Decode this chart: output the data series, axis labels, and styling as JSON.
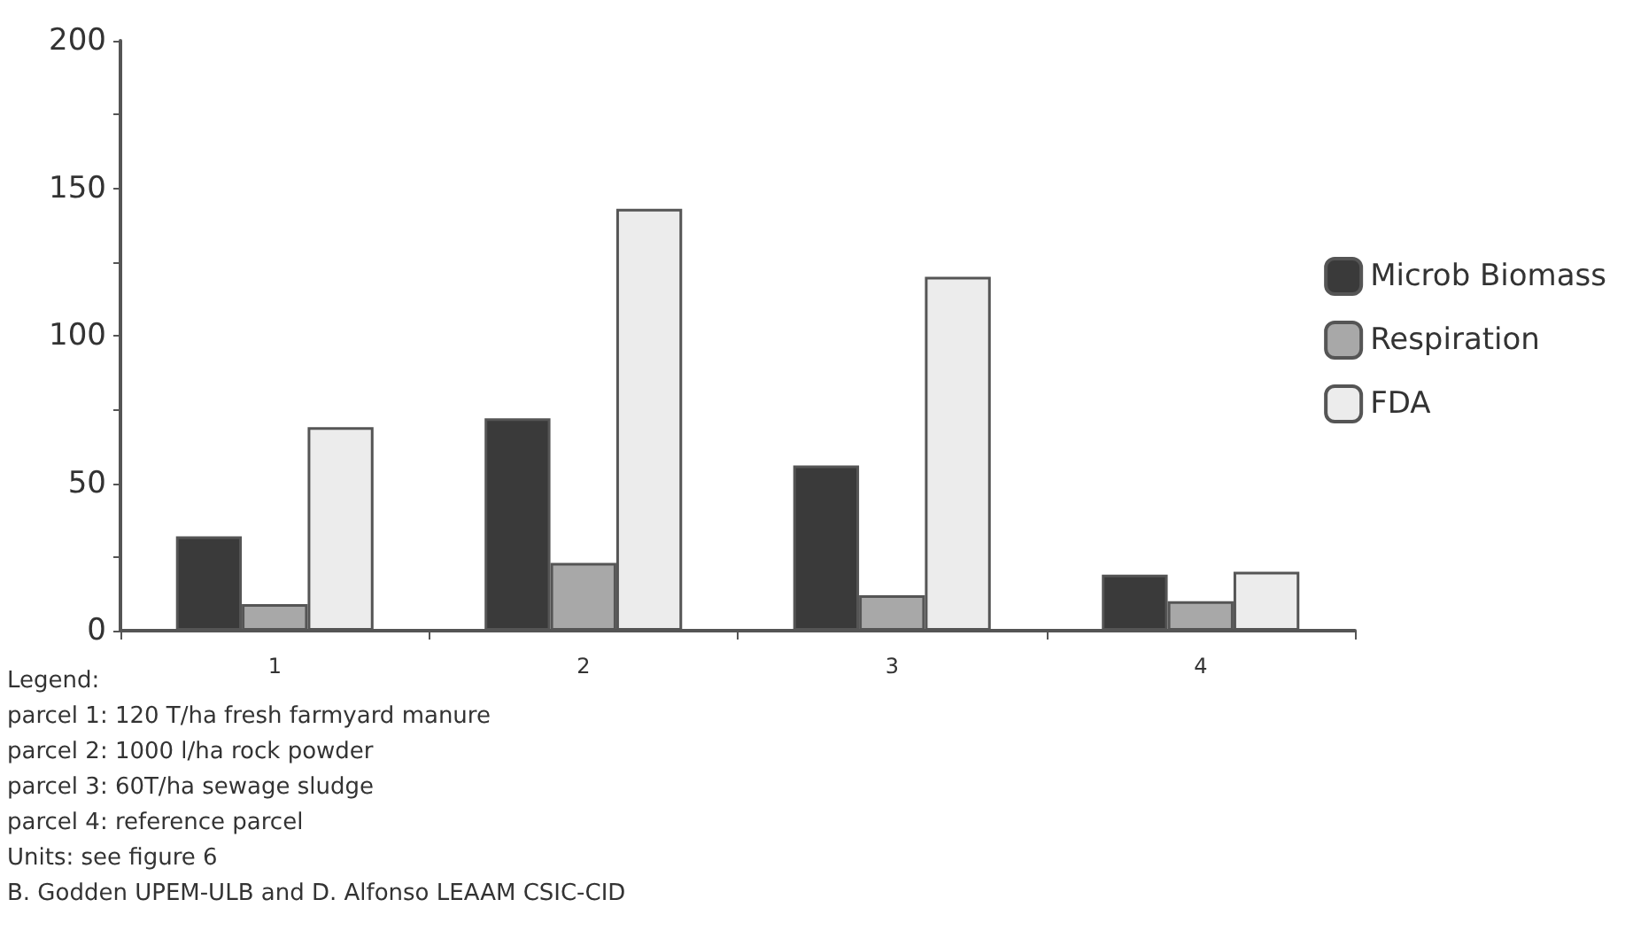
{
  "chart_data": {
    "type": "bar",
    "categories": [
      "1",
      "2",
      "3",
      "4"
    ],
    "series": [
      {
        "name": "Microb Biomass",
        "color": "#3a3a3a",
        "values": [
          32,
          72,
          56,
          19
        ]
      },
      {
        "name": "Respiration",
        "color": "#a8a8a8",
        "values": [
          9,
          23,
          12,
          10
        ]
      },
      {
        "name": "FDA",
        "color": "#ececec",
        "values": [
          69,
          143,
          120,
          20
        ]
      }
    ],
    "ylim": [
      0,
      200
    ],
    "yticks": [
      0,
      {
        "value": 25,
        "label": null
      },
      50,
      {
        "value": 75,
        "label": null
      },
      100,
      {
        "value": 125,
        "label": null
      },
      150,
      {
        "value": 175,
        "label": null
      },
      200
    ],
    "grid": false,
    "legend": "right",
    "annotations": [
      "Legend:",
      "parcel 1: 120 T/ha fresh farmyard manure",
      "parcel 2: 1000 l/ha rock powder",
      "parcel 3: 60T/ha sewage sludge",
      "parcel 4: reference parcel",
      "Units: see figure 6",
      "B. Godden UPEM-ULB and D. Alfonso LEAAM CSIC-CID"
    ]
  }
}
